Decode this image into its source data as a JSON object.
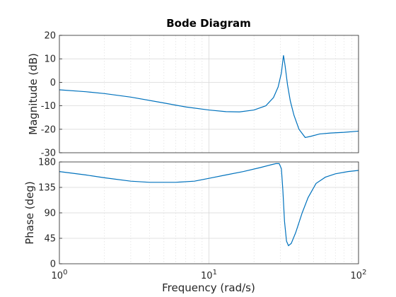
{
  "chart_data": {
    "type": "line",
    "title": "Bode Diagram",
    "xlabel": "Frequency  (rad/s)",
    "xscale": "log",
    "xlim": [
      1,
      100
    ],
    "x_ticks": [
      {
        "base": "10",
        "exp": "0"
      },
      {
        "base": "10",
        "exp": "1"
      },
      {
        "base": "10",
        "exp": "2"
      }
    ],
    "grid": true,
    "line_color": "#0072BD",
    "panels": [
      {
        "name": "magnitude",
        "ylabel": "Magnitude (dB)",
        "ylim": [
          -30,
          20
        ],
        "y_ticks": [
          20,
          10,
          0,
          -10,
          -20,
          -30
        ],
        "points": [
          [
            1,
            -3.2
          ],
          [
            1.5,
            -4.0
          ],
          [
            2,
            -4.8
          ],
          [
            3,
            -6.3
          ],
          [
            5,
            -8.8
          ],
          [
            7,
            -10.5
          ],
          [
            10,
            -11.8
          ],
          [
            13,
            -12.5
          ],
          [
            16,
            -12.6
          ],
          [
            20,
            -11.8
          ],
          [
            24,
            -10.0
          ],
          [
            27,
            -6.5
          ],
          [
            29,
            -2.0
          ],
          [
            30.5,
            4.0
          ],
          [
            31.5,
            11.5
          ],
          [
            32.3,
            7.0
          ],
          [
            33.5,
            -1.0
          ],
          [
            35,
            -8.0
          ],
          [
            37,
            -14.0
          ],
          [
            40,
            -20.0
          ],
          [
            44,
            -23.5
          ],
          [
            48,
            -23.0
          ],
          [
            55,
            -22.0
          ],
          [
            65,
            -21.6
          ],
          [
            80,
            -21.3
          ],
          [
            100,
            -20.8
          ]
        ]
      },
      {
        "name": "phase",
        "ylabel": "Phase (deg)",
        "ylim": [
          0,
          180
        ],
        "y_ticks": [
          180,
          135,
          90,
          45,
          0
        ],
        "points": [
          [
            1,
            163
          ],
          [
            1.5,
            157
          ],
          [
            2,
            152
          ],
          [
            3,
            146
          ],
          [
            4,
            144
          ],
          [
            6,
            144
          ],
          [
            8,
            146
          ],
          [
            10,
            151
          ],
          [
            13,
            157
          ],
          [
            17,
            163
          ],
          [
            22,
            170
          ],
          [
            26,
            175
          ],
          [
            28,
            177
          ],
          [
            29.5,
            177
          ],
          [
            30.5,
            168
          ],
          [
            31.2,
            130
          ],
          [
            32,
            75
          ],
          [
            33,
            40
          ],
          [
            34,
            32
          ],
          [
            35.5,
            36
          ],
          [
            38,
            55
          ],
          [
            42,
            90
          ],
          [
            46,
            117
          ],
          [
            52,
            142
          ],
          [
            60,
            153
          ],
          [
            70,
            159
          ],
          [
            85,
            163
          ],
          [
            100,
            165
          ]
        ]
      }
    ]
  }
}
